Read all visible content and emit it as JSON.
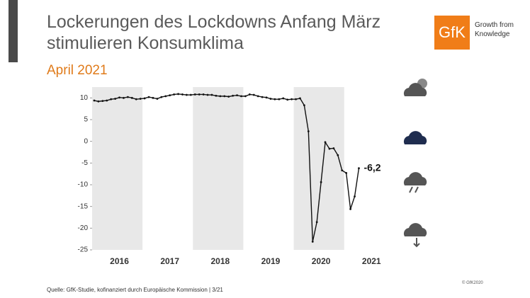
{
  "header": {
    "title": "Lockerungen des Lockdowns Anfang März stimulieren Konsumklima",
    "subtitle": "April 2021",
    "logo": "GfK",
    "logo_text": "Growth from Knowledge"
  },
  "chart_data": {
    "type": "line",
    "categories": [
      null,
      null,
      null,
      null,
      null,
      null,
      "2016",
      null,
      null,
      null,
      null,
      null,
      null,
      null,
      null,
      null,
      null,
      null,
      "2017",
      null,
      null,
      null,
      null,
      null,
      null,
      null,
      null,
      null,
      null,
      null,
      "2018",
      null,
      null,
      null,
      null,
      null,
      null,
      null,
      null,
      null,
      null,
      null,
      "2019",
      null,
      null,
      null,
      null,
      null,
      null,
      null,
      null,
      null,
      null,
      null,
      "2020",
      null,
      null,
      null,
      null,
      null,
      null,
      null,
      null,
      null,
      null,
      null,
      "2021",
      null,
      null,
      null
    ],
    "series": [
      {
        "color": "#111111",
        "values": [
          9.4,
          9.2,
          9.3,
          9.4,
          9.7,
          9.8,
          10.1,
          10.0,
          10.2,
          10.0,
          9.7,
          9.8,
          9.9,
          10.2,
          10.0,
          9.8,
          10.2,
          10.4,
          10.6,
          10.8,
          10.9,
          10.8,
          10.7,
          10.7,
          10.8,
          10.8,
          10.8,
          10.7,
          10.7,
          10.5,
          10.4,
          10.4,
          10.3,
          10.5,
          10.6,
          10.4,
          10.4,
          10.8,
          10.7,
          10.4,
          10.2,
          10.1,
          9.8,
          9.7,
          9.7,
          9.9,
          9.6,
          9.7,
          9.7,
          9.9,
          8.3,
          2.3,
          -23.1,
          -18.6,
          -9.4,
          -0.2,
          -1.7,
          -1.6,
          -3.2,
          -6.7,
          -7.3,
          -15.6,
          -12.7,
          -6.2,
          null,
          null,
          null,
          null,
          null,
          null
        ],
        "value_labels": [
          null,
          null,
          null,
          null,
          null,
          null,
          null,
          null,
          null,
          null,
          null,
          null,
          null,
          null,
          null,
          null,
          null,
          null,
          null,
          null,
          null,
          null,
          null,
          null,
          null,
          null,
          null,
          null,
          null,
          null,
          null,
          null,
          null,
          null,
          null,
          null,
          null,
          null,
          null,
          null,
          null,
          null,
          null,
          null,
          null,
          null,
          null,
          null,
          null,
          null,
          null,
          null,
          null,
          null,
          null,
          null,
          null,
          null,
          null,
          null,
          null,
          null,
          null,
          "-6,2",
          null,
          null,
          null,
          null,
          null,
          null
        ]
      }
    ],
    "ylim": [
      -25,
      12.5
    ],
    "yticks": [
      -25,
      -20,
      -15,
      -10,
      -5,
      0,
      5,
      10
    ],
    "grid": false
  },
  "footer": {
    "source": "Quelle: GfK-Studie, kofinanziert durch Europäische Kommission | 3/21",
    "copyright": "© GfK2020"
  }
}
